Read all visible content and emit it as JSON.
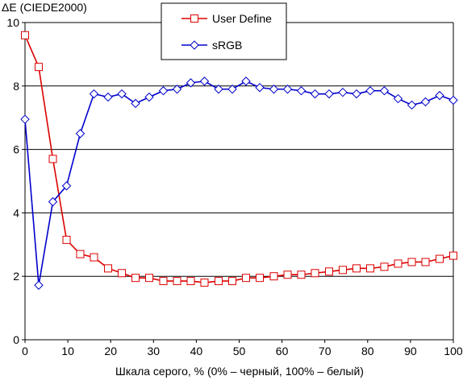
{
  "chart_data": {
    "type": "line",
    "title": "",
    "ylabel": "ΔE (CIEDE2000)",
    "xlabel": "Шкала серого, % (0% – черный, 100% – белый)",
    "xlim": [
      0,
      100
    ],
    "ylim": [
      0,
      10
    ],
    "x_ticks": [
      "0",
      "10",
      "20",
      "30",
      "40",
      "50",
      "60",
      "70",
      "80",
      "90",
      "100"
    ],
    "y_ticks": [
      "0",
      "2",
      "4",
      "6",
      "8",
      "10"
    ],
    "grid": "horizontal",
    "legend_position": "top-center",
    "x": [
      0,
      3.2,
      6.5,
      9.7,
      12.9,
      16.1,
      19.4,
      22.6,
      25.8,
      29.0,
      32.3,
      35.5,
      38.7,
      41.9,
      45.2,
      48.4,
      51.6,
      54.8,
      58.1,
      61.3,
      64.5,
      67.7,
      71.0,
      74.2,
      77.4,
      80.6,
      83.9,
      87.1,
      90.3,
      93.5,
      96.8,
      100
    ],
    "series": [
      {
        "name": "User Define",
        "color": "#dd0000",
        "marker": "square",
        "values": [
          9.6,
          8.6,
          5.7,
          3.15,
          2.7,
          2.6,
          2.25,
          2.1,
          1.95,
          1.95,
          1.85,
          1.85,
          1.85,
          1.8,
          1.85,
          1.85,
          1.95,
          1.95,
          2.0,
          2.05,
          2.05,
          2.1,
          2.15,
          2.2,
          2.25,
          2.25,
          2.3,
          2.4,
          2.45,
          2.45,
          2.55,
          2.65
        ]
      },
      {
        "name": "sRGB",
        "color": "#0000cc",
        "marker": "diamond",
        "values": [
          6.95,
          1.72,
          4.35,
          4.85,
          6.5,
          7.75,
          7.65,
          7.75,
          7.45,
          7.65,
          7.85,
          7.9,
          8.1,
          8.15,
          7.9,
          7.9,
          8.15,
          7.95,
          7.9,
          7.9,
          7.85,
          7.75,
          7.75,
          7.8,
          7.75,
          7.85,
          7.85,
          7.6,
          7.4,
          7.5,
          7.7,
          7.55
        ]
      }
    ]
  }
}
